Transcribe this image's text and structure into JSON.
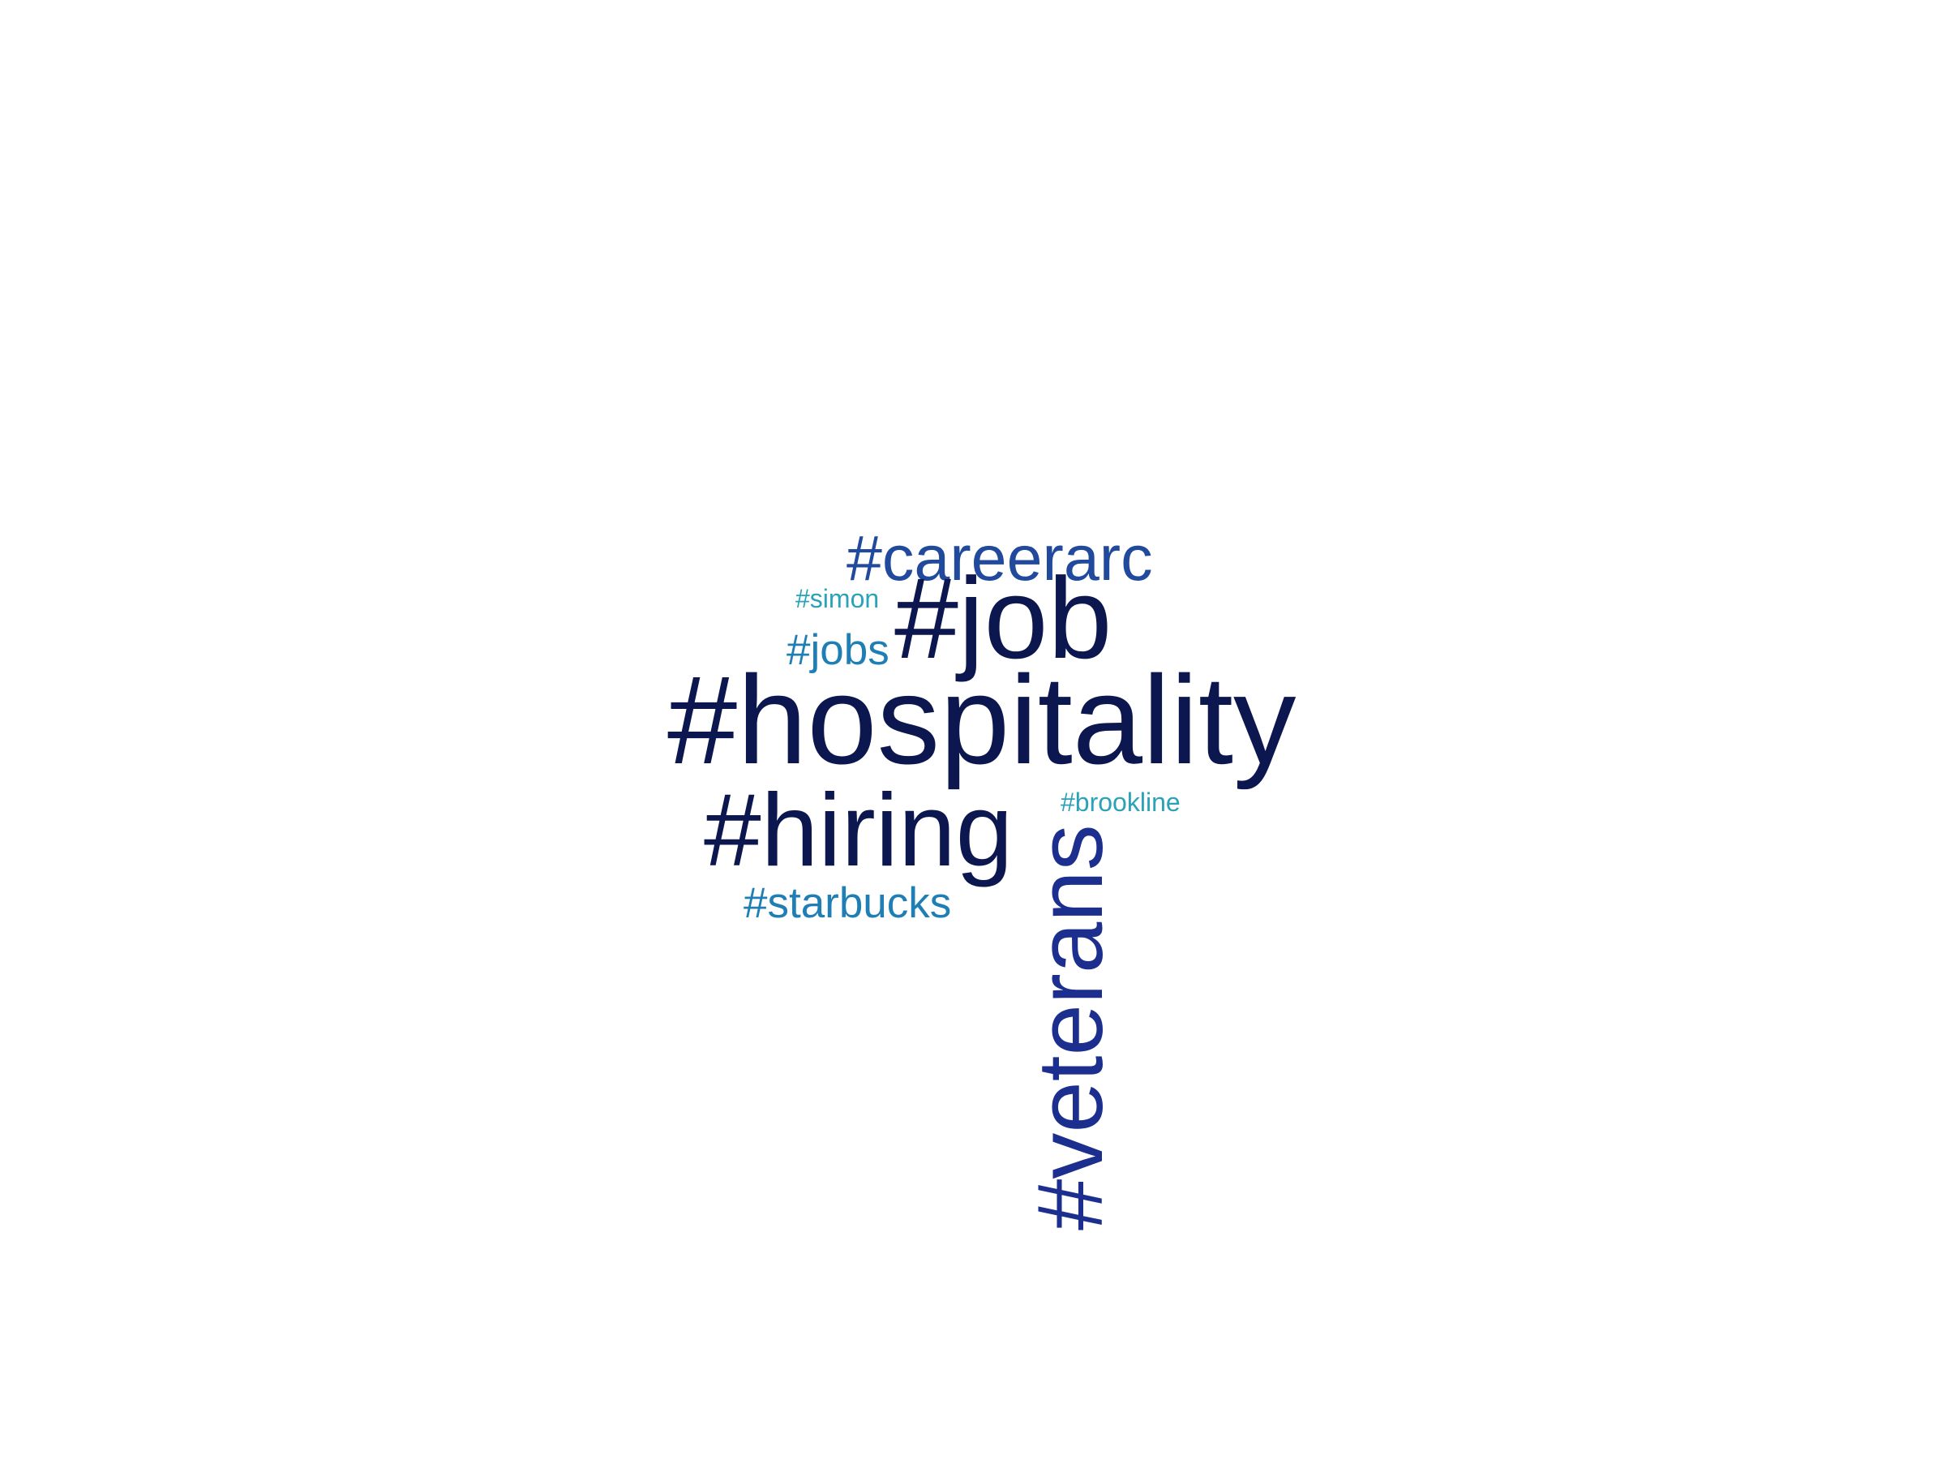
{
  "wordcloud": {
    "words": [
      {
        "key": "careerarc",
        "text": "#careerarc",
        "color": "#214a9c"
      },
      {
        "key": "simon",
        "text": "#simon",
        "color": "#2aa2b8"
      },
      {
        "key": "job",
        "text": "#job",
        "color": "#0d174f"
      },
      {
        "key": "jobs",
        "text": "#jobs",
        "color": "#1f7fb5"
      },
      {
        "key": "hospitality",
        "text": "#hospitality",
        "color": "#0d174f"
      },
      {
        "key": "hiring",
        "text": "#hiring",
        "color": "#0d174f"
      },
      {
        "key": "brookline",
        "text": "#brookline",
        "color": "#2aa2b8"
      },
      {
        "key": "starbucks",
        "text": "#starbucks",
        "color": "#1f7fb5"
      },
      {
        "key": "veterans",
        "text": "#veterans",
        "color": "#1c2f8f"
      }
    ]
  }
}
